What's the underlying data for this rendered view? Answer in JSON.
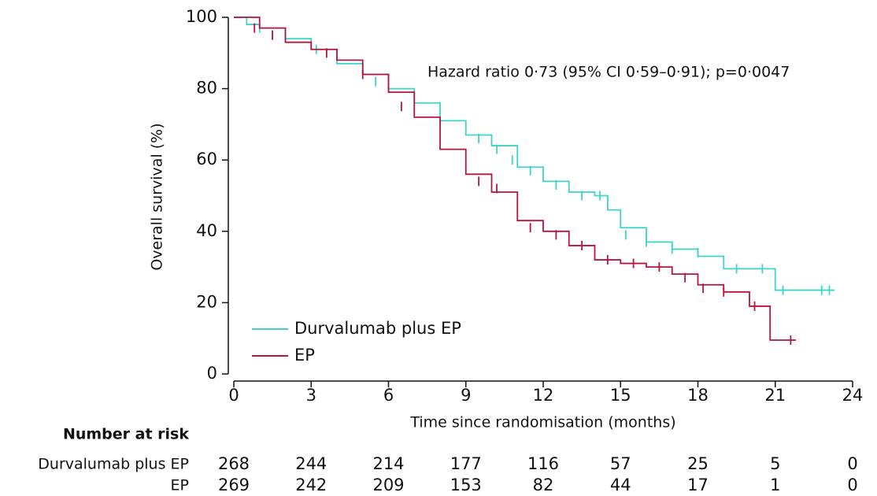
{
  "chart_data": {
    "type": "km",
    "annotation": "Hazard ratio 0·73 (95% CI 0·59–0·91); p=0·0047",
    "xlabel": "Time since randomisation (months)",
    "ylabel": "Overall survival (%)",
    "xlim": [
      0,
      24
    ],
    "xticks": [
      0,
      3,
      6,
      9,
      12,
      15,
      18,
      21,
      24
    ],
    "ylim": [
      0,
      100
    ],
    "yticks": [
      0,
      20,
      40,
      60,
      80,
      100
    ],
    "series": [
      {
        "name": "Durvalumab plus EP",
        "color": "#3fd3c9",
        "x": [
          0,
          0.5,
          1,
          2,
          3,
          4,
          5,
          6,
          7,
          8,
          9,
          10,
          11,
          12,
          13,
          14,
          14.5,
          15,
          16,
          17,
          18,
          19,
          21,
          23.3
        ],
        "values": [
          100,
          98,
          97,
          94,
          91,
          87,
          84,
          80,
          76,
          71,
          67,
          64,
          58,
          54,
          51,
          50,
          46,
          41,
          37,
          35,
          33,
          29.5,
          23.5,
          23.5
        ],
        "censor_x": [
          1,
          1.5,
          3.2,
          5.5,
          8,
          9.5,
          10.2,
          10.8,
          11.5,
          12.5,
          13.5,
          14.2,
          15.2,
          16,
          17,
          18,
          19.5,
          20.5,
          21.3,
          22.8,
          23.1
        ],
        "censor_values": [
          97,
          95,
          91,
          82,
          71,
          66,
          63,
          60,
          57,
          53,
          50,
          50,
          39,
          37,
          35,
          34,
          29.5,
          29.5,
          23.5,
          23.5,
          23.5
        ]
      },
      {
        "name": "EP",
        "color": "#b8143f",
        "x": [
          0,
          1,
          2,
          3,
          4,
          5,
          6,
          7,
          8,
          9,
          10,
          11,
          12,
          13,
          14,
          15,
          16,
          17,
          18,
          19,
          20,
          20.8,
          21.8
        ],
        "values": [
          100,
          97,
          93,
          91,
          88,
          84,
          79,
          72,
          63,
          56,
          51,
          43,
          40,
          36,
          32,
          31,
          30,
          28,
          25,
          23,
          19,
          9.5,
          9.5
        ],
        "censor_x": [
          0.8,
          1.5,
          3.6,
          5,
          6.5,
          9.5,
          10.2,
          11.5,
          12.5,
          13.5,
          14.5,
          15.5,
          16.5,
          17.5,
          18.2,
          19,
          20.2,
          21.6
        ],
        "censor_values": [
          97,
          95,
          90,
          84,
          75,
          54,
          52,
          41,
          39,
          36,
          32,
          31,
          30,
          27,
          24,
          23,
          19,
          9.5
        ]
      }
    ],
    "risk_table": {
      "title": "Number at risk",
      "rows": [
        {
          "label": "Durvalumab plus EP",
          "counts": [
            "268",
            "244",
            "214",
            "177",
            "116",
            "57",
            "25",
            "5",
            "0"
          ]
        },
        {
          "label": "EP",
          "counts": [
            "269",
            "242",
            "209",
            "153",
            "82",
            "44",
            "17",
            "1",
            "0"
          ]
        }
      ]
    }
  }
}
